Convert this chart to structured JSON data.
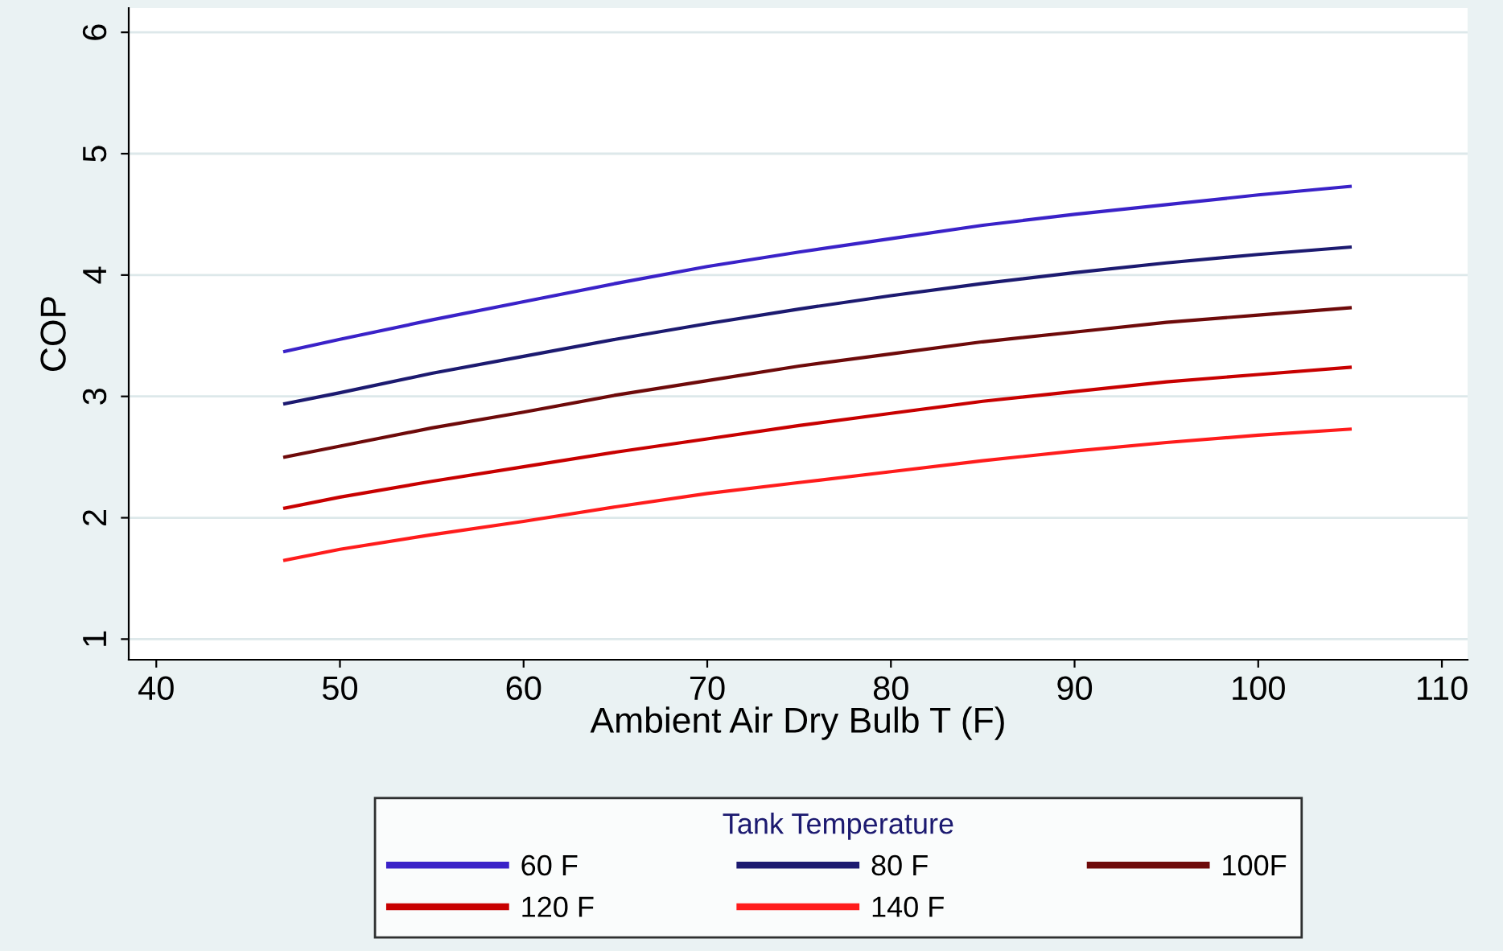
{
  "chart_data": {
    "type": "line",
    "xlabel": "Ambient Air Dry Bulb T (F)",
    "ylabel": "COP",
    "legend_title": "Tank Temperature",
    "x": [
      47,
      50,
      55,
      60,
      65,
      70,
      75,
      80,
      85,
      90,
      95,
      100,
      105
    ],
    "series": [
      {
        "name": "60 F",
        "color": "#3a22c8",
        "values": [
          3.37,
          3.47,
          3.63,
          3.78,
          3.93,
          4.07,
          4.19,
          4.3,
          4.41,
          4.5,
          4.58,
          4.66,
          4.73
        ]
      },
      {
        "name": "80 F",
        "color": "#1c1a70",
        "values": [
          2.94,
          3.03,
          3.19,
          3.33,
          3.47,
          3.6,
          3.72,
          3.83,
          3.93,
          4.02,
          4.1,
          4.17,
          4.23
        ]
      },
      {
        "name": "100F",
        "color": "#6e0a0a",
        "values": [
          2.5,
          2.59,
          2.74,
          2.87,
          3.01,
          3.13,
          3.25,
          3.35,
          3.45,
          3.53,
          3.61,
          3.67,
          3.73
        ]
      },
      {
        "name": "120 F",
        "color": "#c80000",
        "values": [
          2.08,
          2.17,
          2.3,
          2.42,
          2.54,
          2.65,
          2.76,
          2.86,
          2.96,
          3.04,
          3.12,
          3.18,
          3.24
        ]
      },
      {
        "name": "140 F",
        "color": "#ff1c1c",
        "values": [
          1.65,
          1.74,
          1.86,
          1.97,
          2.09,
          2.2,
          2.29,
          2.38,
          2.47,
          2.55,
          2.62,
          2.68,
          2.73
        ]
      }
    ],
    "xlim": [
      38.5,
      111.4
    ],
    "ylim": [
      0.83,
      6.2
    ],
    "xticks": [
      40,
      50,
      60,
      70,
      80,
      90,
      100,
      110
    ],
    "yticks": [
      1,
      2,
      3,
      4,
      5,
      6
    ],
    "grid": "y",
    "legend": "bottom",
    "marker": "none",
    "line_style": "solid"
  }
}
